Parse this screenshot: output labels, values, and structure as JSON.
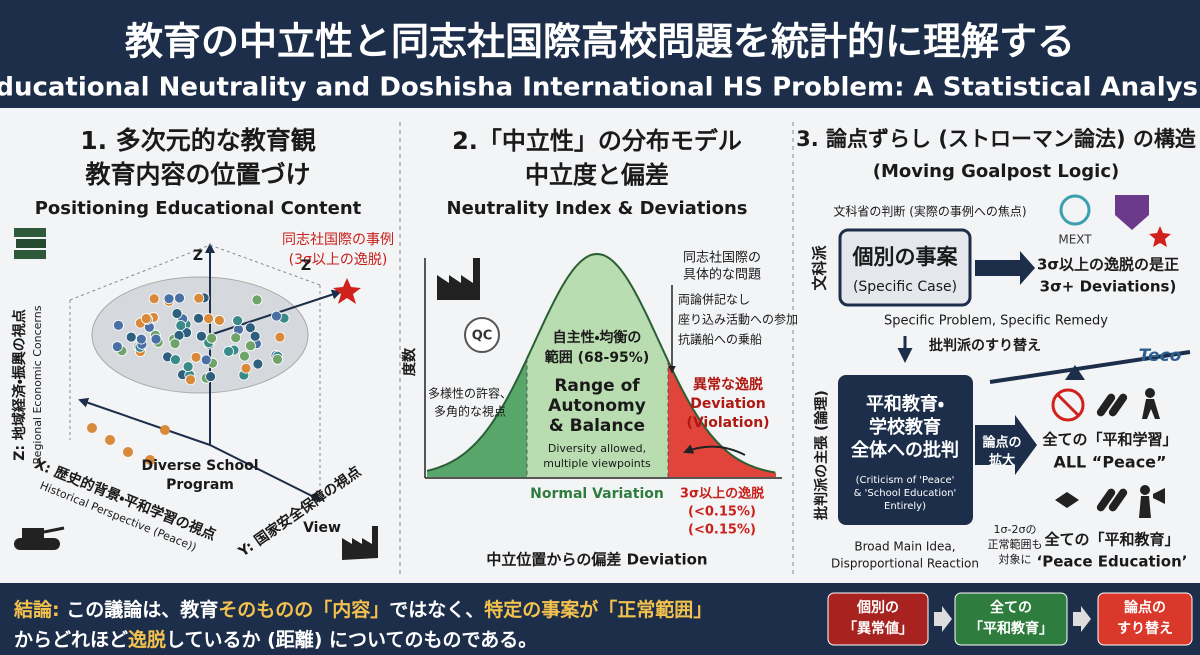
{
  "header": {
    "title": "教育の中立性と同志社国際高校問題を統計的に理解する",
    "subtitle": "(Educational Neutrality and Doshisha International HS Problem: A Statistical Analysis)"
  },
  "panel1": {
    "title": [
      "1. 多次元的な教育観",
      "教育内容の位置づけ"
    ],
    "title_en": "Positioning Educational Content",
    "case_label": [
      "同志社国際の事例",
      "(3σ以上の逸脱)"
    ],
    "z_marks": [
      "Z",
      "Z"
    ],
    "z_axis": "Z: 地域経済・振興の視点",
    "z_axis_en": "Regional Economic Concerns",
    "x_axis": "X: 歴史的背景・平和学習の視点",
    "x_axis_en": "Historical Perspective (Peace))",
    "y_axis": "Y: 国家安全保障の視点",
    "y_axis_en": "View",
    "center_label": [
      "Diverse School",
      "Program"
    ]
  },
  "panel2": {
    "title": [
      "2.「中立性」の分布モデル",
      "中立度と偏差"
    ],
    "title_en": "Neutrality Index & Deviations",
    "qc": "QC",
    "problem_title": [
      "同志社国際の",
      "具体的な問題"
    ],
    "problems": [
      "両論併記なし",
      "座り込み活動への参加",
      "抗議船への乗船"
    ],
    "y_axis": "度数",
    "left_note": [
      "多様性の許容、",
      "多角的な視点"
    ],
    "center_ja": [
      "自主性・均衡の",
      "範囲 (68-95%)"
    ],
    "center_en": [
      "Range of",
      "Autonomy",
      "& Balance"
    ],
    "center_note": [
      "Diversity allowed,",
      "multiple viewpoints"
    ],
    "right_label": [
      "異常な逸脱",
      "Deviation",
      "(Violation)"
    ],
    "normal": "Normal Variation",
    "tail": [
      "3σ以上の逸脱",
      "(<0.15%)",
      "(<0.15%)"
    ],
    "x_axis": "中立位置からの偏差 Deviation"
  },
  "panel3": {
    "title": "3. 論点ずらし (ストローマン論法) の構造",
    "title_en": "(Moving Goalpost Logic)",
    "mext_note": "文科省の判断 (実際の事例への焦点)",
    "mext": "MEXT",
    "side_top": "文科派",
    "case_box": [
      "個別の事案",
      "(Specific Case)"
    ],
    "remedy": [
      "3σ以上の逸脱の是正",
      "3σ+ Deviations)"
    ],
    "remedy_note": "Specific Problem, Specific Remedy",
    "swap": "批判派のすり替え",
    "teco": "Teco",
    "side_bottom": "批判派の主張 (論理)",
    "critic_box": [
      "平和教育・",
      "学校教育",
      "全体への批判"
    ],
    "critic_box_en": [
      "(Criticism of 'Peace'",
      "& 'School Education'",
      "Entirely)"
    ],
    "expand": [
      "論点の",
      "拡大"
    ],
    "all_peace": [
      "全ての「平和学習」",
      "ALL “Peace”"
    ],
    "all_edu": [
      "全ての「平和教育」",
      "‘Peace Education’"
    ],
    "range_note": [
      "1σ-2σの",
      "正常範囲も",
      "対象に"
    ],
    "broad": [
      "Broad Main Idea,",
      "Disproportional Reaction"
    ]
  },
  "footer": {
    "conclusion": [
      [
        {
          "text": "結論:",
          "highlight": true
        },
        {
          "text": " この議論は、教育",
          "highlight": false
        },
        {
          "text": "そのものの「内容」",
          "highlight": true
        },
        {
          "text": "ではなく、",
          "highlight": false
        },
        {
          "text": "特定の事案が「正常範囲」",
          "highlight": true
        }
      ],
      [
        {
          "text": "からどれほど",
          "highlight": false
        },
        {
          "text": "逸脱",
          "highlight": true
        },
        {
          "text": "しているか (距離) についてのものである。",
          "highlight": false
        }
      ]
    ],
    "boxes": [
      {
        "lines": [
          "個別の",
          "「異常値」"
        ],
        "color": "#a8231f"
      },
      {
        "lines": [
          "全ての",
          "「平和教育」"
        ],
        "color": "#2f7d3e"
      },
      {
        "lines": [
          "論点の",
          "すり替え"
        ],
        "color": "#d9382b"
      }
    ]
  }
}
